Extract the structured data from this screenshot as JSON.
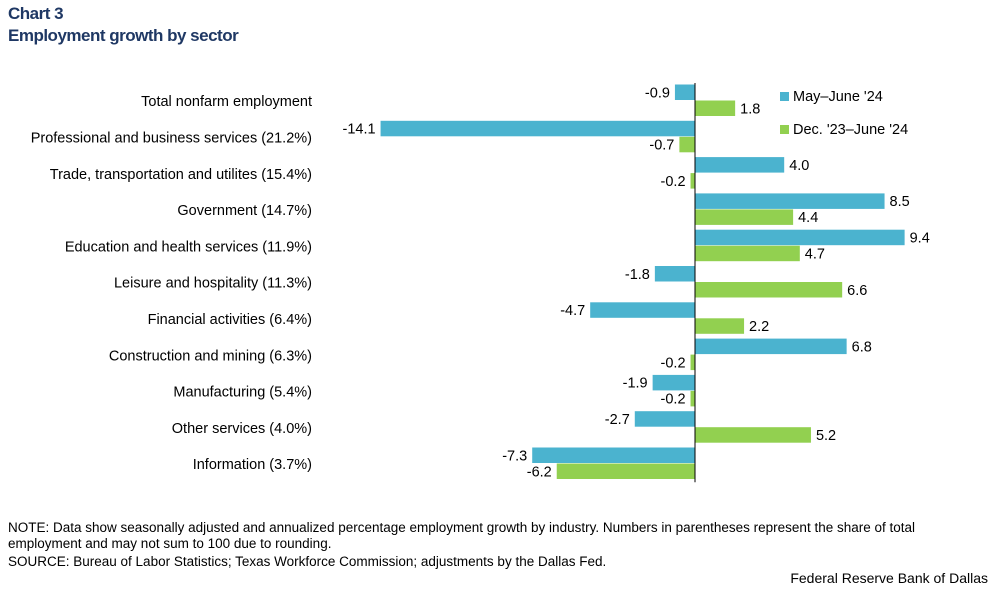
{
  "header": {
    "chart_number": "Chart 3",
    "title": "Employment growth by sector"
  },
  "chart_data": {
    "type": "bar",
    "orientation": "horizontal",
    "title": "Employment growth by sector",
    "categories": [
      "Total nonfarm employment",
      "Professional and business services (21.2%)",
      "Trade, transportation and utilites (15.4%)",
      "Government  (14.7%)",
      "Education and health services (11.9%)",
      "Leisure and hospitality (11.3%)",
      "Financial activities  (6.4%)",
      "Construction and mining (6.3%)",
      "Manufacturing  (5.4%)",
      "Other services  (4.0%)",
      "Information  (3.7%)"
    ],
    "series": [
      {
        "name": "May–June '24",
        "color": "#4bb3cf",
        "values": [
          -0.9,
          -14.1,
          4.0,
          8.5,
          9.4,
          -1.8,
          -4.7,
          6.8,
          -1.9,
          -2.7,
          -7.3
        ]
      },
      {
        "name": "Dec. '23–June '24",
        "color": "#92d050",
        "values": [
          1.8,
          -0.7,
          -0.2,
          4.4,
          4.7,
          6.6,
          2.2,
          -0.2,
          -0.2,
          5.2,
          -6.2
        ]
      }
    ],
    "xlim": [
      -14.1,
      9.4
    ],
    "legend_position": "top-right",
    "data_labels": true
  },
  "footer": {
    "note": "NOTE: Data show seasonally adjusted and annualized percentage employment growth by industry. Numbers in parentheses represent the share of total employment and may not sum to 100 due to rounding.",
    "source": "SOURCE: Bureau of Labor Statistics; Texas Workforce Commission; adjustments by the Dallas Fed.",
    "credit": "Federal Reserve Bank of Dallas"
  }
}
